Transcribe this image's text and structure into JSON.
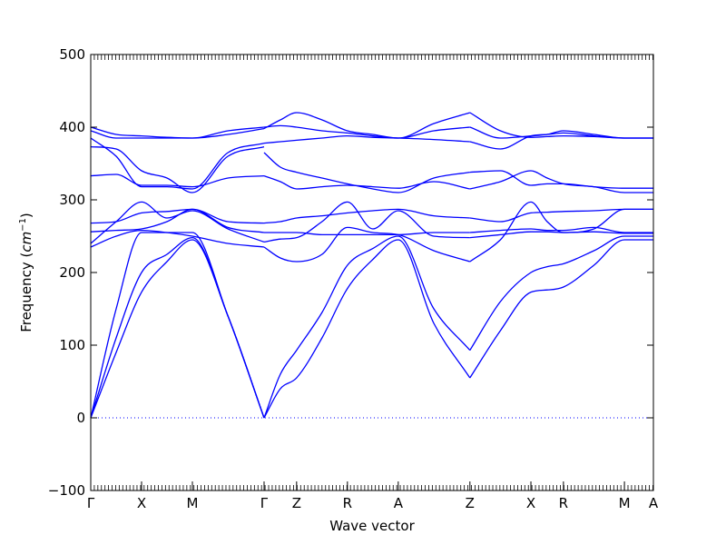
{
  "chart_data": {
    "type": "line",
    "title": "",
    "xlabel": "Wave vector",
    "ylabel": "Frequency ($cm^{-1}$)",
    "ylabel_parts": {
      "main": "Frequency (",
      "unit": "cm",
      "exp": "−1",
      "close": ")"
    },
    "ylim": [
      -100,
      500
    ],
    "yticks": [
      -100,
      0,
      100,
      200,
      300,
      400,
      500
    ],
    "grid": false,
    "zero_line": true,
    "xlim": [
      0,
      11.07
    ],
    "kpoints": [
      {
        "label": "Γ",
        "x": 0.0
      },
      {
        "label": "X",
        "x": 1.0
      },
      {
        "label": "M",
        "x": 2.0
      },
      {
        "label": "Γ",
        "x": 3.41
      },
      {
        "label": "Z",
        "x": 4.05
      },
      {
        "label": "R",
        "x": 5.05
      },
      {
        "label": "A",
        "x": 6.05
      },
      {
        "label": "Z",
        "x": 7.46
      },
      {
        "label": "X",
        "x": 8.66
      },
      {
        "label": "R",
        "x": 9.3
      },
      {
        "label": "M",
        "x": 10.5
      },
      {
        "label": "A",
        "x": 11.07
      }
    ],
    "line_color": "#0000ff",
    "series": [
      {
        "x": [
          0,
          0.5,
          1,
          1.5,
          2,
          2.7,
          3.41
        ],
        "y": [
          0,
          90,
          173,
          215,
          245,
          140,
          0
        ]
      },
      {
        "x": [
          0,
          0.5,
          1,
          1.5,
          2,
          2.7,
          3.41
        ],
        "y": [
          0,
          110,
          200,
          225,
          248,
          140,
          0
        ]
      },
      {
        "x": [
          0,
          0.5,
          1,
          1.5,
          2,
          2.7,
          3.41
        ],
        "y": [
          0,
          150,
          255,
          255,
          255,
          140,
          0
        ]
      },
      {
        "x": [
          0,
          0.5,
          1,
          1.5,
          2,
          2.7,
          3.41
        ],
        "y": [
          235,
          250,
          258,
          255,
          250,
          240,
          235
        ]
      },
      {
        "x": [
          0,
          0.5,
          1,
          1.5,
          2,
          2.7,
          3.41
        ],
        "y": [
          240,
          270,
          297,
          275,
          285,
          260,
          242
        ]
      },
      {
        "x": [
          0,
          0.5,
          1,
          1.5,
          2,
          2.7,
          3.41
        ],
        "y": [
          256,
          258,
          260,
          270,
          287,
          262,
          255
        ]
      },
      {
        "x": [
          0,
          0.5,
          1,
          1.5,
          2,
          2.7,
          3.41
        ],
        "y": [
          268,
          270,
          282,
          284,
          287,
          270,
          268
        ]
      },
      {
        "x": [
          0,
          0.5,
          1,
          1.5,
          2,
          2.7,
          3.41
        ],
        "y": [
          333,
          335,
          320,
          320,
          318,
          330,
          333
        ]
      },
      {
        "x": [
          0,
          0.5,
          1,
          1.5,
          2,
          2.7,
          3.41
        ],
        "y": [
          373,
          370,
          340,
          330,
          310,
          360,
          373
        ]
      },
      {
        "x": [
          0,
          0.5,
          1,
          1.5,
          2,
          2.7,
          3.41
        ],
        "y": [
          385,
          360,
          318,
          318,
          315,
          365,
          378
        ]
      },
      {
        "x": [
          0,
          0.5,
          1,
          1.5,
          2,
          2.7,
          3.41
        ],
        "y": [
          395,
          385,
          385,
          385,
          385,
          390,
          398
        ]
      },
      {
        "x": [
          0,
          0.5,
          1,
          1.5,
          2,
          2.7,
          3.41
        ],
        "y": [
          400,
          390,
          388,
          386,
          385,
          395,
          400
        ]
      },
      {
        "x": [
          3.41,
          3.73,
          4.05,
          4.55,
          5.05,
          5.55,
          6.05,
          6.75,
          7.46
        ],
        "y": [
          0,
          40,
          55,
          110,
          178,
          218,
          245,
          130,
          55
        ]
      },
      {
        "x": [
          3.41,
          3.73,
          4.05,
          4.55,
          5.05,
          5.55,
          6.05,
          6.75,
          7.46
        ],
        "y": [
          0,
          60,
          93,
          145,
          210,
          233,
          250,
          150,
          93
        ]
      },
      {
        "x": [
          3.41,
          3.73,
          4.05,
          4.55,
          5.05,
          5.55,
          6.05,
          6.75,
          7.46
        ],
        "y": [
          235,
          220,
          215,
          225,
          262,
          255,
          252,
          230,
          215
        ]
      },
      {
        "x": [
          3.41,
          3.73,
          4.05,
          4.55,
          5.05,
          5.55,
          6.05,
          6.75,
          7.46
        ],
        "y": [
          242,
          246,
          248,
          270,
          297,
          260,
          285,
          250,
          248
        ]
      },
      {
        "x": [
          3.41,
          3.73,
          4.05,
          4.55,
          5.05,
          5.55,
          6.05,
          6.75,
          7.46
        ],
        "y": [
          255,
          255,
          255,
          252,
          252,
          252,
          252,
          255,
          255
        ]
      },
      {
        "x": [
          3.41,
          3.73,
          4.05,
          4.55,
          5.05,
          5.55,
          6.05,
          6.75,
          7.46
        ],
        "y": [
          268,
          270,
          275,
          278,
          282,
          285,
          287,
          278,
          275
        ]
      },
      {
        "x": [
          3.41,
          3.73,
          4.05,
          4.55,
          5.05,
          5.55,
          6.05,
          6.75,
          7.46
        ],
        "y": [
          333,
          325,
          315,
          318,
          320,
          318,
          316,
          325,
          315
        ]
      },
      {
        "x": [
          3.41,
          3.73,
          4.05,
          4.55,
          5.05,
          5.55,
          6.05,
          6.75,
          7.46
        ],
        "y": [
          365,
          345,
          338,
          330,
          322,
          315,
          310,
          330,
          338
        ]
      },
      {
        "x": [
          3.41,
          3.73,
          4.05,
          4.55,
          5.05,
          5.55,
          6.05,
          6.75,
          7.46
        ],
        "y": [
          378,
          380,
          382,
          385,
          388,
          386,
          385,
          383,
          380
        ]
      },
      {
        "x": [
          3.41,
          3.73,
          4.05,
          4.55,
          5.05,
          5.55,
          6.05,
          6.75,
          7.46
        ],
        "y": [
          398,
          410,
          420,
          410,
          395,
          390,
          385,
          405,
          420
        ]
      },
      {
        "x": [
          3.41,
          3.73,
          4.05,
          4.55,
          5.05,
          5.55,
          6.05,
          6.75,
          7.46
        ],
        "y": [
          400,
          402,
          400,
          395,
          392,
          388,
          385,
          395,
          400
        ]
      },
      {
        "x": [
          7.46,
          8.06,
          8.66,
          8.98,
          9.3,
          9.9,
          10.5,
          10.78,
          11.07
        ],
        "y": [
          55,
          120,
          173,
          176,
          180,
          210,
          245,
          245,
          245
        ]
      },
      {
        "x": [
          7.46,
          8.06,
          8.66,
          8.98,
          9.3,
          9.9,
          10.5,
          10.78,
          11.07
        ],
        "y": [
          93,
          160,
          200,
          208,
          212,
          230,
          250,
          250,
          250
        ]
      },
      {
        "x": [
          7.46,
          8.06,
          8.66,
          8.98,
          9.3,
          9.9,
          10.5,
          10.78,
          11.07
        ],
        "y": [
          215,
          245,
          297,
          270,
          255,
          260,
          287,
          287,
          287
        ]
      },
      {
        "x": [
          7.46,
          8.06,
          8.66,
          8.98,
          9.3,
          9.9,
          10.5,
          10.78,
          11.07
        ],
        "y": [
          248,
          252,
          256,
          256,
          255,
          256,
          254,
          254,
          254
        ]
      },
      {
        "x": [
          7.46,
          8.06,
          8.66,
          8.98,
          9.3,
          9.9,
          10.5,
          10.78,
          11.07
        ],
        "y": [
          255,
          258,
          260,
          258,
          258,
          262,
          255,
          255,
          255
        ]
      },
      {
        "x": [
          7.46,
          8.06,
          8.66,
          8.98,
          9.3,
          9.9,
          10.5,
          10.78,
          11.07
        ],
        "y": [
          275,
          270,
          282,
          283,
          284,
          285,
          287,
          287,
          287
        ]
      },
      {
        "x": [
          7.46,
          8.06,
          8.66,
          8.98,
          9.3,
          9.9,
          10.5,
          10.78,
          11.07
        ],
        "y": [
          315,
          325,
          340,
          330,
          322,
          318,
          310,
          310,
          310
        ]
      },
      {
        "x": [
          7.46,
          8.06,
          8.66,
          8.98,
          9.3,
          9.9,
          10.5,
          10.78,
          11.07
        ],
        "y": [
          338,
          340,
          320,
          322,
          322,
          318,
          316,
          316,
          316
        ]
      },
      {
        "x": [
          7.46,
          8.06,
          8.66,
          8.98,
          9.3,
          9.9,
          10.5,
          10.78,
          11.07
        ],
        "y": [
          380,
          370,
          388,
          390,
          392,
          388,
          385,
          385,
          385
        ]
      },
      {
        "x": [
          7.46,
          8.06,
          8.66,
          8.98,
          9.3,
          9.9,
          10.5,
          10.78,
          11.07
        ],
        "y": [
          400,
          385,
          388,
          390,
          395,
          390,
          385,
          385,
          385
        ]
      },
      {
        "x": [
          7.46,
          8.06,
          8.66,
          8.98,
          9.3,
          9.9,
          10.5,
          10.78,
          11.07
        ],
        "y": [
          420,
          395,
          386,
          387,
          388,
          387,
          385,
          385,
          385
        ]
      }
    ]
  }
}
